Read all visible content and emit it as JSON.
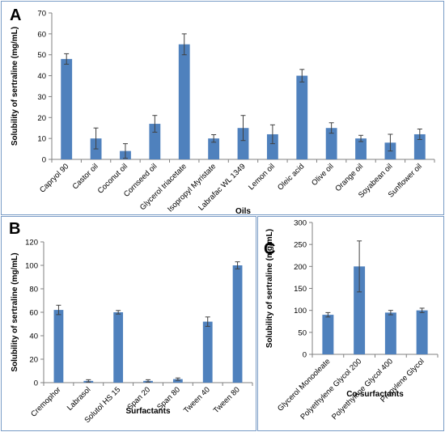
{
  "panels": {
    "a": "A",
    "b": "B",
    "c": "C"
  },
  "colors": {
    "bar": "#4f81bd",
    "axis": "#808080",
    "error": "#404040"
  },
  "chart_data": [
    {
      "type": "bar",
      "panel": "A",
      "xlabel": "Oils",
      "ylabel": "Solubility of sertraline  (mg/mL)",
      "ylim": [
        0,
        70
      ],
      "yticks": [
        0,
        10,
        20,
        30,
        40,
        50,
        60,
        70
      ],
      "categories": [
        "Capryol 90",
        "Castor oil",
        "Coconut oil",
        "Cornseed oil",
        "Glycerol triacetate",
        "Isopropyl Myristate",
        "Labrafac WL 1349",
        "Lemon oil",
        "Oleic acid",
        "Olive oil",
        "Orange oil",
        "Soyabean oil",
        "Sunflower oil"
      ],
      "values": [
        48,
        10,
        4,
        17,
        55,
        10,
        15,
        12,
        40,
        15,
        10,
        8,
        12
      ],
      "errors": [
        2.5,
        5,
        3.5,
        4,
        5,
        1.8,
        6,
        4.5,
        3,
        2.5,
        1.5,
        4,
        2.5
      ]
    },
    {
      "type": "bar",
      "panel": "B",
      "xlabel": "Surfactants",
      "ylabel": "Solubility of sertraline  (mg/mL)",
      "ylim": [
        0,
        120
      ],
      "yticks": [
        0,
        20,
        40,
        60,
        80,
        100,
        120
      ],
      "categories": [
        "Cremophor",
        "Labrasol",
        "Solutol HS 15",
        "Span 20",
        "Span 80",
        "Tween 40",
        "Tween 80"
      ],
      "values": [
        62,
        1.5,
        60,
        1.5,
        3,
        52,
        100
      ],
      "errors": [
        4,
        1,
        1.5,
        1,
        1,
        4,
        3
      ]
    },
    {
      "type": "bar",
      "panel": "C",
      "xlabel": "Co-surfactants",
      "ylabel": "Solubility of sertraline  (mg/mL)",
      "ylim": [
        0,
        300
      ],
      "yticks": [
        0,
        50,
        100,
        150,
        200,
        250,
        300
      ],
      "categories": [
        "Glycerol Monooleate",
        "Polyethylene Glycol 200",
        "Polyethylene Glycol 400",
        "Propylene Glycol"
      ],
      "values": [
        90,
        200,
        95,
        100
      ],
      "errors": [
        5,
        58,
        5,
        5
      ]
    }
  ]
}
